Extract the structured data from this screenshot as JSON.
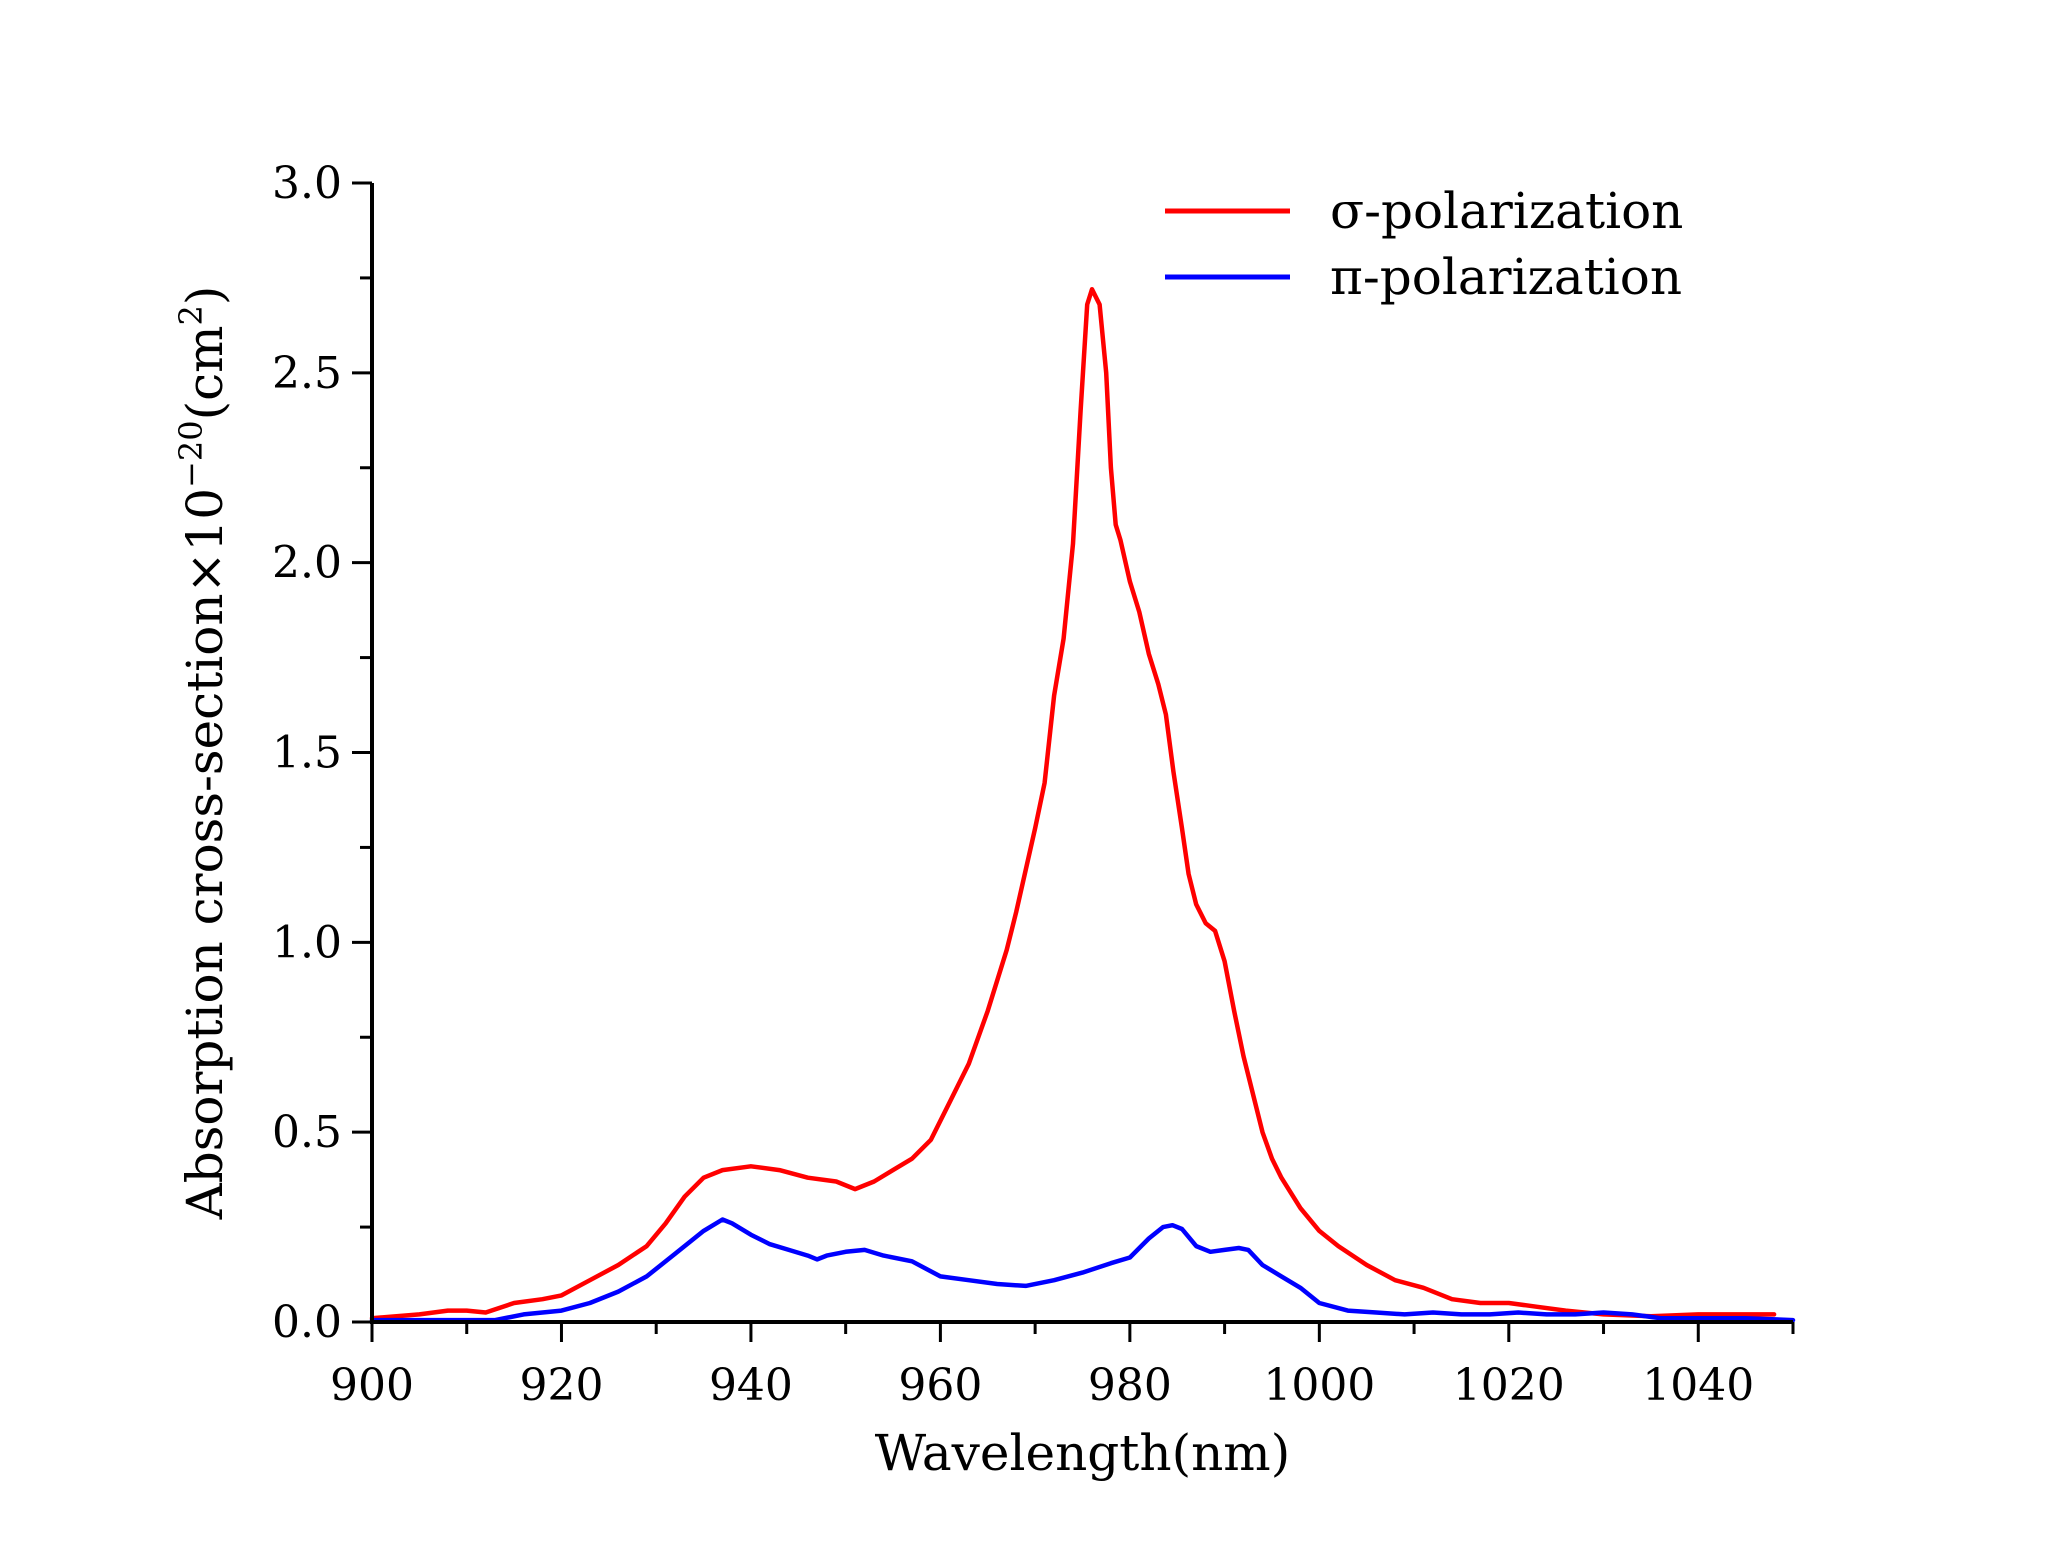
{
  "chart_data": {
    "type": "line",
    "title": "",
    "xlabel": "Wavelength(nm)",
    "ylabel": {
      "main": "Absorption cross-section×10",
      "exponent": "−20",
      "unit_open": "(cm",
      "unit_exponent": "2",
      "unit_close": ")"
    },
    "xlim": [
      900,
      1050
    ],
    "ylim": [
      0,
      3.0
    ],
    "xticks": [
      900,
      920,
      940,
      960,
      980,
      1000,
      1020,
      1040
    ],
    "xtick_labels": [
      "900",
      "920",
      "940",
      "960",
      "980",
      "1000",
      "1020",
      "1040"
    ],
    "yticks": [
      0,
      0.5,
      1.0,
      1.5,
      2.0,
      2.5,
      3.0
    ],
    "ytick_labels": [
      "0.0",
      "0.5",
      "1.0",
      "1.5",
      "2.0",
      "2.5",
      "3.0"
    ],
    "grid": false,
    "legend_position": "top-right",
    "series": [
      {
        "name": "σ-polarization",
        "color": "#ff0000",
        "x": [
          900,
          905,
          908,
          910,
          912,
          915,
          918,
          920,
          923,
          926,
          929,
          931,
          933,
          935,
          937,
          940,
          943,
          946,
          949,
          951,
          953,
          955,
          957,
          959,
          961,
          963,
          965,
          967,
          968,
          970,
          971,
          972,
          973,
          974,
          974.8,
          975.5,
          976,
          976.8,
          977.5,
          978,
          978.5,
          979,
          980,
          981,
          982,
          983,
          983.8,
          984.6,
          985.5,
          986.2,
          987,
          988,
          989,
          990,
          991,
          992,
          993,
          994,
          995,
          996,
          998,
          1000,
          1002,
          1005,
          1008,
          1011,
          1014,
          1017,
          1020,
          1023,
          1026,
          1030,
          1035,
          1040,
          1045,
          1048
        ],
        "values": [
          0.01,
          0.02,
          0.03,
          0.03,
          0.025,
          0.05,
          0.06,
          0.07,
          0.11,
          0.15,
          0.2,
          0.26,
          0.33,
          0.38,
          0.4,
          0.41,
          0.4,
          0.38,
          0.37,
          0.35,
          0.37,
          0.4,
          0.43,
          0.48,
          0.58,
          0.68,
          0.82,
          0.98,
          1.08,
          1.3,
          1.42,
          1.65,
          1.8,
          2.05,
          2.4,
          2.68,
          2.72,
          2.68,
          2.5,
          2.25,
          2.1,
          2.06,
          1.95,
          1.87,
          1.76,
          1.68,
          1.6,
          1.45,
          1.3,
          1.18,
          1.1,
          1.05,
          1.03,
          0.95,
          0.82,
          0.7,
          0.6,
          0.5,
          0.43,
          0.38,
          0.3,
          0.24,
          0.2,
          0.15,
          0.11,
          0.09,
          0.06,
          0.05,
          0.05,
          0.04,
          0.03,
          0.02,
          0.015,
          0.02,
          0.02,
          0.02
        ]
      },
      {
        "name": "π-polarization",
        "color": "#0000ff",
        "x": [
          900,
          905,
          910,
          913,
          916,
          920,
          923,
          926,
          929,
          932,
          935,
          937,
          938,
          940,
          942,
          944,
          946,
          947,
          948,
          950,
          952,
          954,
          957,
          960,
          963,
          966,
          969,
          972,
          975,
          978,
          980,
          982,
          983.5,
          984.5,
          985.5,
          987,
          988.5,
          990,
          991.5,
          992.5,
          994,
          996,
          998,
          1000,
          1003,
          1006,
          1009,
          1012,
          1015,
          1018,
          1021,
          1024,
          1027,
          1030,
          1033,
          1036,
          1040,
          1045,
          1050
        ],
        "values": [
          0.005,
          0.005,
          0.005,
          0.005,
          0.02,
          0.03,
          0.05,
          0.08,
          0.12,
          0.18,
          0.24,
          0.27,
          0.26,
          0.23,
          0.205,
          0.19,
          0.175,
          0.165,
          0.175,
          0.185,
          0.19,
          0.175,
          0.16,
          0.12,
          0.11,
          0.1,
          0.095,
          0.11,
          0.13,
          0.155,
          0.17,
          0.22,
          0.25,
          0.255,
          0.245,
          0.2,
          0.185,
          0.19,
          0.195,
          0.19,
          0.15,
          0.12,
          0.09,
          0.05,
          0.03,
          0.025,
          0.02,
          0.025,
          0.02,
          0.02,
          0.025,
          0.02,
          0.02,
          0.025,
          0.02,
          0.01,
          0.01,
          0.01,
          0.005
        ]
      }
    ]
  }
}
